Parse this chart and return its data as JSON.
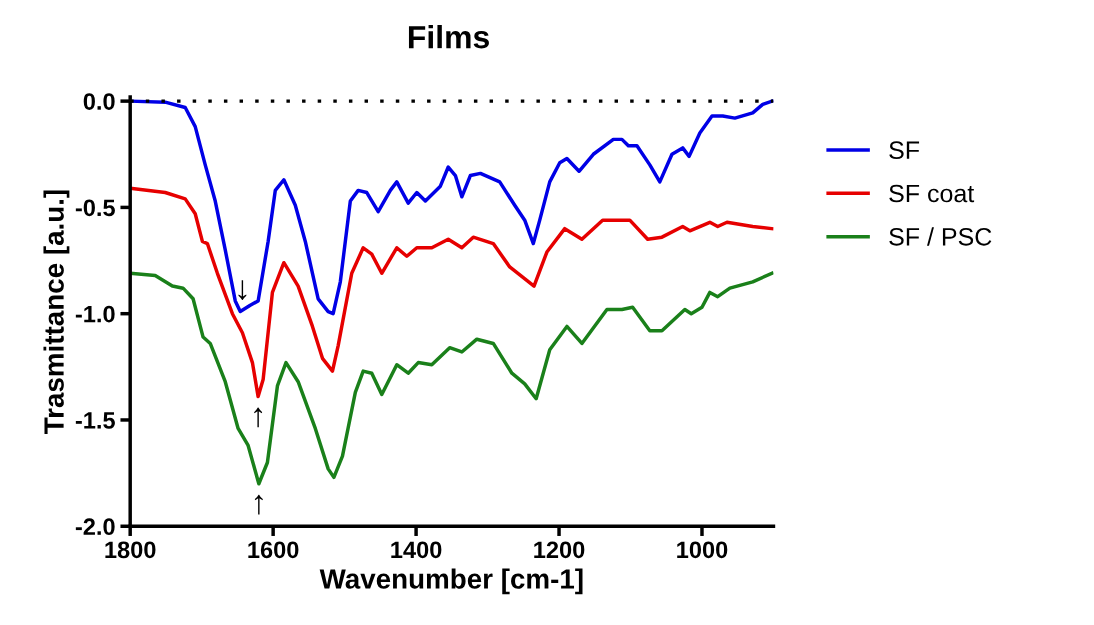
{
  "chart_data": {
    "type": "line",
    "title": "Films",
    "xlabel": "Wavenumber [cm-1]",
    "ylabel": "Trasmittance [a.u.]",
    "xlim": [
      1800,
      900
    ],
    "ylim": [
      -2.0,
      0.02
    ],
    "xticks": [
      1800,
      1600,
      1400,
      1200,
      1000
    ],
    "yticks": [
      {
        "value": 0,
        "label": "0.0"
      },
      {
        "value": -0.5,
        "label": "-0.5"
      },
      {
        "value": -1.0,
        "label": "-1.0"
      },
      {
        "value": -1.5,
        "label": "-1.5"
      },
      {
        "value": -2.0,
        "label": "-2.0"
      }
    ],
    "grid": false,
    "legend": "right",
    "line_style": "solid",
    "marker": "none",
    "ref_lines": [
      {
        "axis": "y",
        "value": 0,
        "color": "#000000",
        "line_style": "dotted"
      }
    ],
    "annotations": [
      {
        "text": "↓",
        "x": 1643,
        "y": -0.99
      },
      {
        "text": "↑",
        "x": 1621,
        "y": -1.39
      },
      {
        "text": "↑",
        "x": 1620,
        "y": -1.8
      }
    ],
    "series": [
      {
        "name": "SF",
        "color": "#0000e6",
        "x": [
          1800,
          1751,
          1723,
          1709,
          1695,
          1681,
          1667,
          1653,
          1646,
          1632,
          1621,
          1607,
          1597,
          1585,
          1569,
          1555,
          1537,
          1523,
          1516,
          1506,
          1492,
          1481,
          1469,
          1453,
          1436,
          1427,
          1411,
          1399,
          1387,
          1366,
          1355,
          1345,
          1336,
          1324,
          1310,
          1283,
          1262,
          1248,
          1236,
          1227,
          1213,
          1199,
          1189,
          1172,
          1152,
          1124,
          1112,
          1103,
          1091,
          1073,
          1059,
          1042,
          1027,
          1018,
          1003,
          986,
          971,
          954,
          929,
          915,
          902
        ],
        "values": [
          0,
          -0.005,
          -0.03,
          -0.12,
          -0.3,
          -0.47,
          -0.7,
          -0.94,
          -0.99,
          -0.96,
          -0.94,
          -0.66,
          -0.42,
          -0.37,
          -0.49,
          -0.66,
          -0.93,
          -0.99,
          -1.0,
          -0.85,
          -0.47,
          -0.42,
          -0.43,
          -0.52,
          -0.42,
          -0.38,
          -0.48,
          -0.43,
          -0.47,
          -0.4,
          -0.31,
          -0.35,
          -0.45,
          -0.35,
          -0.34,
          -0.38,
          -0.49,
          -0.56,
          -0.67,
          -0.56,
          -0.38,
          -0.29,
          -0.27,
          -0.33,
          -0.25,
          -0.18,
          -0.18,
          -0.21,
          -0.21,
          -0.3,
          -0.38,
          -0.25,
          -0.22,
          -0.26,
          -0.15,
          -0.07,
          -0.07,
          -0.08,
          -0.055,
          -0.015,
          0.0
        ]
      },
      {
        "name": "SF coat",
        "color": "#e60000",
        "x": [
          1800,
          1751,
          1723,
          1709,
          1699,
          1692,
          1678,
          1657,
          1643,
          1629,
          1621,
          1614,
          1601,
          1585,
          1565,
          1545,
          1531,
          1517,
          1509,
          1490,
          1474,
          1462,
          1448,
          1427,
          1413,
          1399,
          1378,
          1355,
          1336,
          1320,
          1292,
          1269,
          1250,
          1235,
          1217,
          1192,
          1168,
          1139,
          1101,
          1076,
          1056,
          1027,
          1017,
          989,
          978,
          965,
          929,
          902
        ],
        "values": [
          -0.41,
          -0.43,
          -0.46,
          -0.53,
          -0.66,
          -0.67,
          -0.81,
          -1.0,
          -1.09,
          -1.23,
          -1.39,
          -1.31,
          -0.9,
          -0.76,
          -0.87,
          -1.06,
          -1.21,
          -1.27,
          -1.15,
          -0.81,
          -0.69,
          -0.72,
          -0.81,
          -0.69,
          -0.73,
          -0.69,
          -0.69,
          -0.65,
          -0.69,
          -0.64,
          -0.67,
          -0.78,
          -0.83,
          -0.87,
          -0.71,
          -0.6,
          -0.65,
          -0.56,
          -0.56,
          -0.65,
          -0.64,
          -0.59,
          -0.61,
          -0.57,
          -0.59,
          -0.57,
          -0.59,
          -0.6
        ]
      },
      {
        "name": "SF / PSC",
        "color": "#1a801a",
        "x": [
          1800,
          1765,
          1741,
          1726,
          1712,
          1698,
          1688,
          1667,
          1649,
          1635,
          1620,
          1608,
          1594,
          1582,
          1565,
          1541,
          1523,
          1515,
          1503,
          1485,
          1474,
          1462,
          1448,
          1427,
          1411,
          1397,
          1378,
          1353,
          1336,
          1315,
          1292,
          1266,
          1248,
          1232,
          1213,
          1189,
          1168,
          1133,
          1112,
          1097,
          1073,
          1056,
          1024,
          1015,
          1000,
          989,
          978,
          961,
          929,
          902
        ],
        "values": [
          -0.81,
          -0.82,
          -0.87,
          -0.88,
          -0.93,
          -1.11,
          -1.14,
          -1.32,
          -1.54,
          -1.62,
          -1.8,
          -1.7,
          -1.34,
          -1.23,
          -1.32,
          -1.54,
          -1.73,
          -1.77,
          -1.67,
          -1.37,
          -1.27,
          -1.28,
          -1.38,
          -1.24,
          -1.28,
          -1.23,
          -1.24,
          -1.16,
          -1.18,
          -1.12,
          -1.14,
          -1.28,
          -1.33,
          -1.4,
          -1.17,
          -1.06,
          -1.14,
          -0.98,
          -0.98,
          -0.97,
          -1.08,
          -1.08,
          -0.98,
          -1.0,
          -0.97,
          -0.9,
          -0.92,
          -0.88,
          -0.85,
          -0.81
        ]
      }
    ]
  }
}
